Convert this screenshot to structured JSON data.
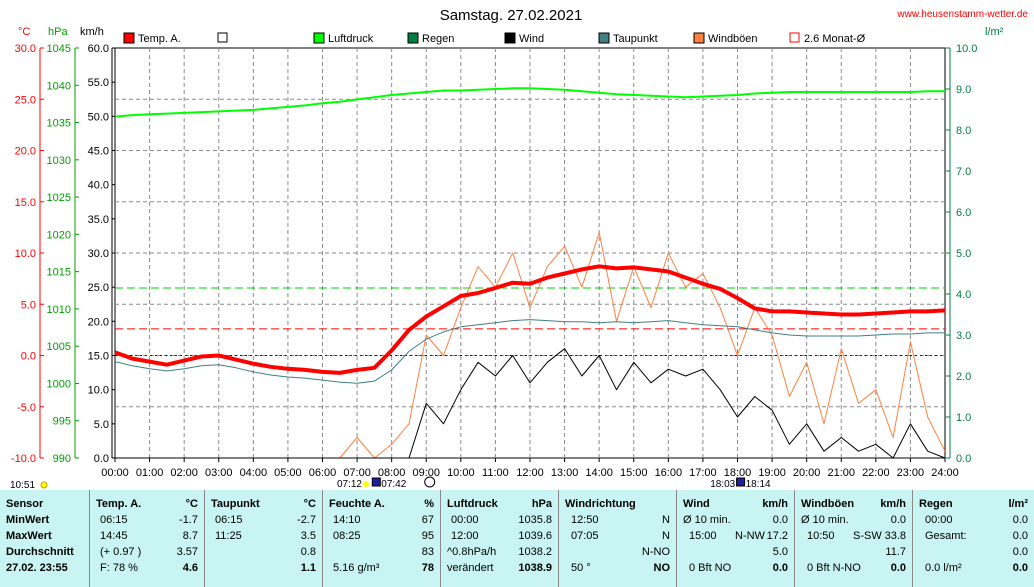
{
  "header": {
    "date_title": "Samstag. 27.02.2021",
    "website": "www.heusenstamm-wetter.de",
    "unit_temp": "°C",
    "unit_hpa": "hPa",
    "unit_kmh": "km/h",
    "unit_rain": "l/m²"
  },
  "legend": [
    {
      "label": "Temp. A.",
      "color": "#ff0000",
      "style": "fill"
    },
    {
      "label": "",
      "color": "#ffffff",
      "style": "box"
    },
    {
      "label": "Luftdruck",
      "color": "#00ff00",
      "style": "fill"
    },
    {
      "label": "Regen",
      "color": "#008040",
      "style": "fill"
    },
    {
      "label": "Wind",
      "color": "#000000",
      "style": "fill"
    },
    {
      "label": "Taupunkt",
      "color": "#408080",
      "style": "fill"
    },
    {
      "label": "Windböen",
      "color": "#ff8040",
      "style": "fill"
    },
    {
      "label": "2.6 Monat-Ø",
      "color": "#ff0000",
      "style": "box"
    }
  ],
  "axes": {
    "temp_ticks": [
      "30.0",
      "25.0",
      "20.0",
      "15.0",
      "10.0",
      "5.0",
      "0.0",
      "-5.0",
      "-10.0"
    ],
    "hpa_ticks": [
      "1045",
      "1040",
      "1035",
      "1030",
      "1025",
      "1020",
      "1015",
      "1010",
      "1005",
      "1000",
      "995",
      "990"
    ],
    "kmh_ticks": [
      "60.0",
      "55.0",
      "50.0",
      "45.0",
      "40.0",
      "35.0",
      "30.0",
      "25.0",
      "20.0",
      "15.0",
      "10.0",
      "5.0",
      "0.0"
    ],
    "rain_ticks": [
      "10.0",
      "9.0",
      "8.0",
      "7.0",
      "6.0",
      "5.0",
      "4.0",
      "3.0",
      "2.0",
      "1.0",
      "0.0"
    ],
    "time_ticks": [
      "00:00",
      "01:00",
      "02:00",
      "03:00",
      "04:00",
      "05:00",
      "06:00",
      "07:00",
      "08:00",
      "09:00",
      "10:00",
      "11:00",
      "12:00",
      "13:00",
      "14:00",
      "15:00",
      "16:00",
      "17:00",
      "18:00",
      "19:00",
      "20:00",
      "21:00",
      "22:00",
      "23:00",
      "24:00"
    ]
  },
  "markers": {
    "stamp": "10:51",
    "sunrise": "07:12",
    "moonrise": "07:42",
    "sunset": "18:03",
    "moonset": "18:14"
  },
  "chart_data": {
    "type": "line",
    "x_hours": [
      0,
      0.5,
      1,
      1.5,
      2,
      2.5,
      3,
      3.5,
      4,
      4.5,
      5,
      5.5,
      6,
      6.5,
      7,
      7.5,
      8,
      8.5,
      9,
      9.5,
      10,
      10.5,
      11,
      11.5,
      12,
      12.5,
      13,
      13.5,
      14,
      14.5,
      15,
      15.5,
      16,
      16.5,
      17,
      17.5,
      18,
      18.5,
      19,
      19.5,
      20,
      20.5,
      21,
      21.5,
      22,
      22.5,
      23,
      23.5,
      24
    ],
    "series": [
      {
        "name": "Temp. A.",
        "color": "#ff0000",
        "axis": "temp",
        "width": 4,
        "values": [
          0.3,
          -0.3,
          -0.6,
          -0.9,
          -0.5,
          -0.1,
          0.0,
          -0.4,
          -0.8,
          -1.1,
          -1.3,
          -1.4,
          -1.6,
          -1.7,
          -1.4,
          -1.2,
          0.5,
          2.5,
          3.8,
          4.8,
          5.8,
          6.1,
          6.6,
          7.1,
          7.0,
          7.6,
          8.0,
          8.4,
          8.7,
          8.5,
          8.6,
          8.4,
          8.2,
          7.6,
          7.0,
          6.5,
          5.6,
          4.6,
          4.3,
          4.3,
          4.2,
          4.1,
          4.0,
          4.0,
          4.1,
          4.2,
          4.3,
          4.3,
          4.4
        ]
      },
      {
        "name": "Taupunkt",
        "color": "#408080",
        "axis": "temp",
        "width": 1,
        "values": [
          -0.6,
          -1.0,
          -1.3,
          -1.5,
          -1.3,
          -1.0,
          -0.9,
          -1.2,
          -1.6,
          -1.9,
          -2.1,
          -2.2,
          -2.4,
          -2.6,
          -2.7,
          -2.5,
          -1.4,
          0.4,
          1.6,
          2.3,
          2.8,
          3.0,
          3.2,
          3.4,
          3.5,
          3.4,
          3.3,
          3.3,
          3.2,
          3.3,
          3.2,
          3.3,
          3.4,
          3.2,
          3.0,
          2.9,
          2.8,
          2.5,
          2.2,
          2.0,
          1.9,
          1.9,
          1.9,
          1.9,
          2.0,
          2.1,
          2.1,
          2.2,
          2.2
        ]
      },
      {
        "name": "Luftdruck",
        "color": "#00ff00",
        "axis": "hpa",
        "width": 2,
        "values": [
          1035.8,
          1036.0,
          1036.1,
          1036.2,
          1036.3,
          1036.4,
          1036.5,
          1036.6,
          1036.7,
          1036.9,
          1037.1,
          1037.3,
          1037.6,
          1037.8,
          1038.1,
          1038.4,
          1038.7,
          1038.9,
          1039.1,
          1039.3,
          1039.3,
          1039.4,
          1039.5,
          1039.6,
          1039.6,
          1039.5,
          1039.4,
          1039.2,
          1039.0,
          1038.8,
          1038.7,
          1038.6,
          1038.5,
          1038.4,
          1038.5,
          1038.6,
          1038.7,
          1038.9,
          1039.0,
          1039.1,
          1039.1,
          1039.1,
          1039.1,
          1039.1,
          1039.1,
          1039.1,
          1039.1,
          1039.2,
          1039.2
        ]
      },
      {
        "name": "Windböen",
        "color": "#ff8040",
        "axis": "kmh",
        "width": 1,
        "values": [
          0,
          0,
          0,
          0,
          0,
          0,
          0,
          0,
          0,
          0,
          0,
          0,
          0,
          0,
          3,
          0,
          2,
          5,
          18,
          15,
          22,
          28,
          25,
          30,
          22,
          28,
          31,
          25,
          33,
          20,
          28,
          22,
          30,
          25,
          27,
          22,
          15,
          22,
          18,
          9,
          14,
          5,
          16,
          8,
          10,
          3,
          17,
          6,
          1
        ]
      },
      {
        "name": "Wind",
        "color": "#000000",
        "axis": "kmh",
        "width": 1,
        "values": [
          0,
          0,
          0,
          0,
          0,
          0,
          0,
          0,
          0,
          0,
          0,
          0,
          0,
          0,
          0,
          0,
          0,
          0,
          8,
          5,
          10,
          14,
          12,
          15,
          11,
          14,
          16,
          12,
          15,
          10,
          14,
          11,
          13,
          12,
          13,
          10,
          6,
          9,
          7,
          2,
          5,
          1,
          3,
          1,
          2,
          0,
          5,
          1,
          0
        ]
      }
    ],
    "reference_lines": [
      {
        "name": "Temp-Monat-Ø",
        "color": "#ff0000",
        "axis": "temp",
        "value": 2.6,
        "dash": "8,4"
      },
      {
        "name": "Luftdruck-Mittel",
        "color": "#00d000",
        "axis": "hpa",
        "value": 1012.8,
        "dash": "8,4"
      },
      {
        "name": "Null-Linie",
        "color": "#0000ff",
        "axis": "temp",
        "value": 0.0,
        "dash": "2,3"
      }
    ],
    "rain_bars": [],
    "ranges": {
      "temp": [
        -10,
        30
      ],
      "hpa": [
        990,
        1045
      ],
      "kmh": [
        0,
        60
      ],
      "rain": [
        0,
        10
      ],
      "hours": [
        0,
        24
      ]
    }
  },
  "table": {
    "sensor": {
      "header": "Sensor",
      "min": "MinWert",
      "max": "MaxWert",
      "avg": "Durchschnitt",
      "now": "27.02. 23:55"
    },
    "temp": {
      "header": "Temp. A.",
      "unit": "°C",
      "min_time": "06:15",
      "min_val": "-1.7",
      "max_time": "14:45",
      "max_val": "8.7",
      "avg_note": "(+ 0.97 )",
      "avg_val": "3.57",
      "now_note": "F: 78 %",
      "now_val": "4.6"
    },
    "dew": {
      "header": "Taupunkt",
      "unit": "°C",
      "min_time": "06:15",
      "min_val": "-2.7",
      "max_time": "11:25",
      "max_val": "3.5",
      "avg_val": "0.8",
      "now_val": "1.1"
    },
    "hum": {
      "header": "Feuchte A.",
      "unit": "%",
      "min_time": "14:10",
      "min_val": "67",
      "max_time": "08:25",
      "max_val": "95",
      "avg_val": "83",
      "now_note": "5.16 g/m³",
      "now_val": "78"
    },
    "press": {
      "header": "Luftdruck",
      "unit": "hPa",
      "min_time": "00:00",
      "min_val": "1035.8",
      "max_time": "12:00",
      "max_val": "1039.6",
      "avg_note": "^0.8hPa/h",
      "avg_val": "1038.2",
      "now_note": "verändert",
      "now_val": "1038.9"
    },
    "dir": {
      "header": "Windrichtung",
      "min_time": "12:50",
      "min_val": "N",
      "max_time": "07:05",
      "max_val": "N",
      "avg_val": "N-NO",
      "now_note": "50 °",
      "now_val": "NO"
    },
    "wind": {
      "header": "Wind",
      "unit": "km/h",
      "min_time": "Ø 10 min.",
      "min_val": "0.0",
      "max_time": "15:00",
      "max_dir": "N-NW",
      "max_val": "17.2",
      "avg_val": "5.0",
      "now_note": "0 Bft NO",
      "now_val": "0.0"
    },
    "gust": {
      "header": "Windböen",
      "unit": "km/h",
      "min_time": "Ø 10 min.",
      "min_val": "0.0",
      "max_time": "10:50",
      "max_dir": "S-SW",
      "max_val": "33.8",
      "avg_val": "11.7",
      "now_note": "0 Bft N-NO",
      "now_val": "0.0"
    },
    "rain": {
      "header": "Regen",
      "unit": "l/m²",
      "min_time": "00:00",
      "min_val": "0.0",
      "max_label": "Gesamt:",
      "max_val": "0.0",
      "avg_val": "0.0",
      "now_note": "0.0 l/m²",
      "now_val": "0.0"
    }
  }
}
